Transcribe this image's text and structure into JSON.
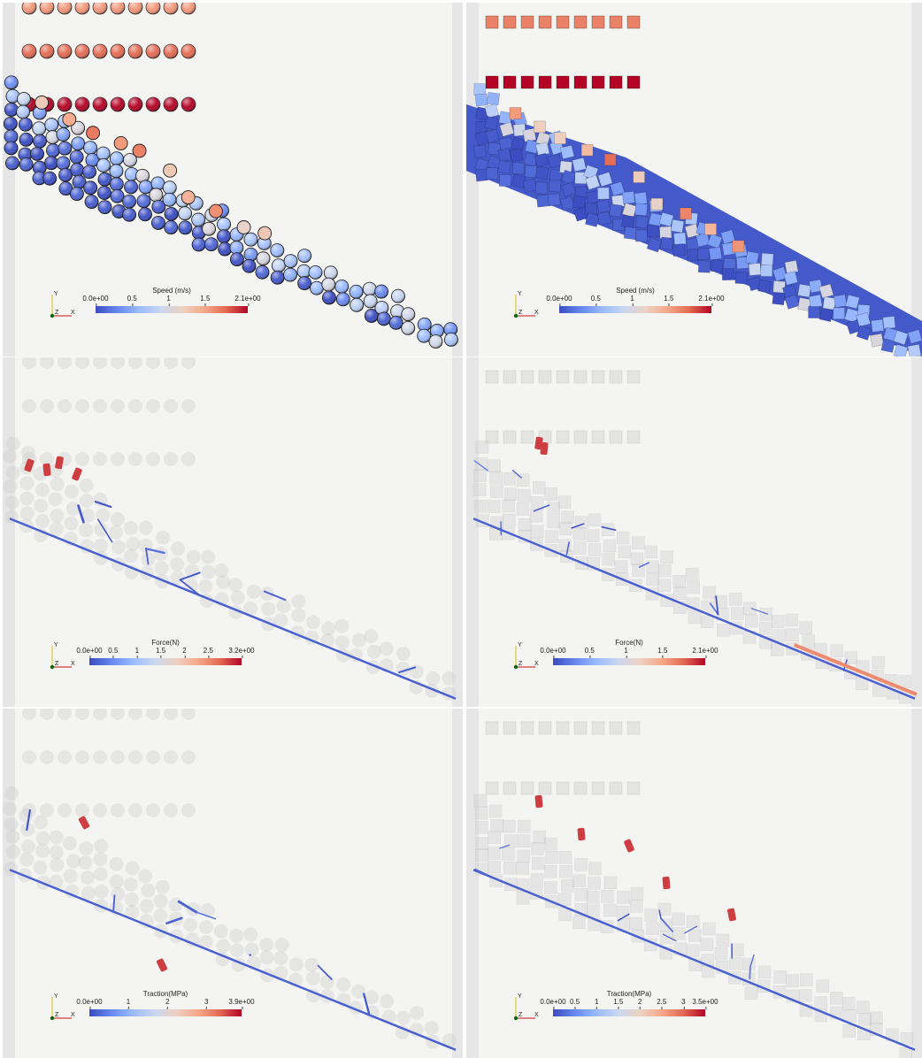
{
  "panels": [
    {
      "id": "p1",
      "shape": "spheres",
      "mode": "solid",
      "colorbar": {
        "title": "Speed (m/s)",
        "ticks": [
          "0.0e+00",
          "0.5",
          "1",
          "1.5",
          "2.1e+00"
        ],
        "fracs": [
          0,
          0.24,
          0.48,
          0.72,
          1
        ]
      }
    },
    {
      "id": "p2",
      "shape": "cubes",
      "mode": "solid",
      "colorbar": {
        "title": "Speed (m/s)",
        "ticks": [
          "0.0e+00",
          "0.5",
          "1",
          "1.5",
          "2.1e+00"
        ],
        "fracs": [
          0,
          0.24,
          0.48,
          0.72,
          1
        ]
      }
    },
    {
      "id": "p3",
      "shape": "spheres",
      "mode": "network",
      "colorbar": {
        "title": "Force(N)",
        "ticks": [
          "0.0e+00",
          "0.5",
          "1",
          "1.5",
          "2",
          "2.5",
          "3.2e+00"
        ],
        "fracs": [
          0,
          0.156,
          0.313,
          0.469,
          0.625,
          0.781,
          1
        ]
      }
    },
    {
      "id": "p4",
      "shape": "cubes",
      "mode": "network",
      "colorbar": {
        "title": "Force(N)",
        "ticks": [
          "0.0e+00",
          "0.5",
          "1",
          "1.5",
          "2.1e+00"
        ],
        "fracs": [
          0,
          0.24,
          0.48,
          0.72,
          1
        ]
      }
    },
    {
      "id": "p5",
      "shape": "spheres",
      "mode": "network",
      "colorbar": {
        "title": "Traction(MPa)",
        "ticks": [
          "0.0e+00",
          "1",
          "2",
          "3",
          "3.9e+00"
        ],
        "fracs": [
          0,
          0.256,
          0.513,
          0.769,
          1
        ]
      }
    },
    {
      "id": "p6",
      "shape": "cubes",
      "mode": "network",
      "colorbar": {
        "title": "Traction(MPa)",
        "ticks": [
          "0.0e+00",
          "0.5",
          "1",
          "1.5",
          "2",
          "2.5",
          "3",
          "3.5e+00"
        ],
        "fracs": [
          0,
          0.143,
          0.286,
          0.429,
          0.571,
          0.714,
          0.857,
          1
        ]
      }
    }
  ],
  "axes_labels": {
    "y": "Y",
    "z": "Z",
    "x": "X"
  },
  "colors": {
    "low": "#3b4cc0",
    "mid": "#dddddd",
    "high": "#b40426",
    "background": "#f4f4f3",
    "wall": "#e6e6e6"
  }
}
